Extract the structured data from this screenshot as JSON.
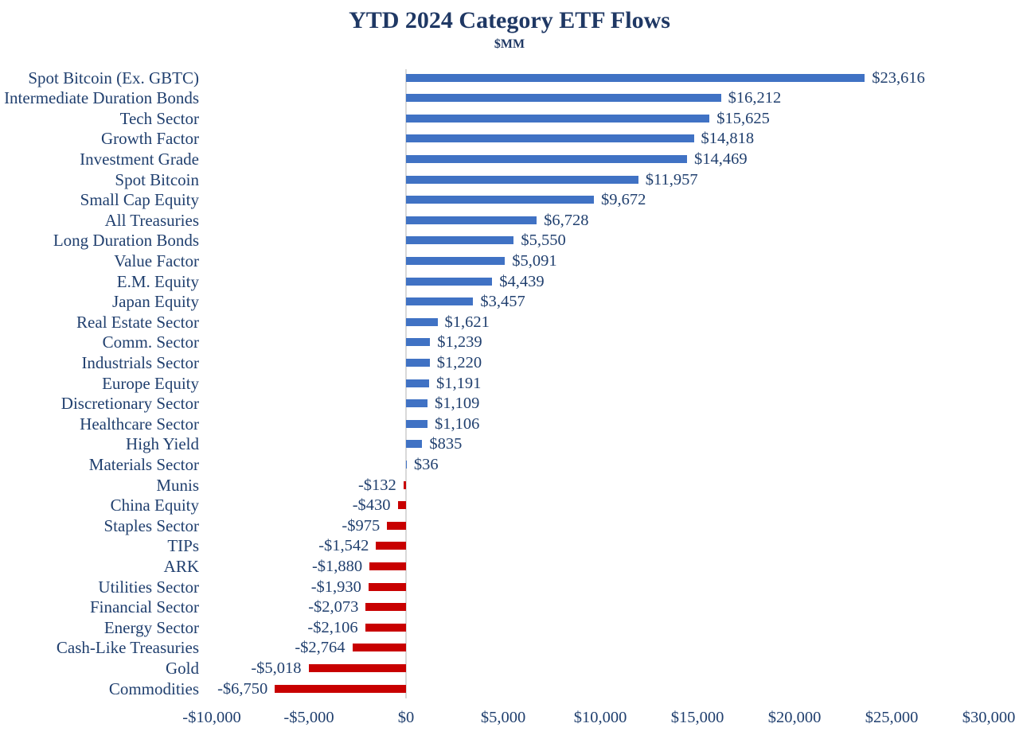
{
  "chart_data": {
    "type": "bar",
    "orientation": "horizontal",
    "title": "YTD 2024 Category ETF Flows",
    "subtitle": "$MM",
    "xlim": [
      -10000,
      30000
    ],
    "grid": false,
    "categories": [
      "Spot Bitcoin (Ex. GBTC)",
      "Intermediate Duration Bonds",
      "Tech Sector",
      "Growth Factor",
      "Investment Grade",
      "Spot Bitcoin",
      "Small Cap Equity",
      "All Treasuries",
      "Long Duration Bonds",
      "Value Factor",
      "E.M. Equity",
      "Japan Equity",
      "Real Estate Sector",
      "Comm. Sector",
      "Industrials Sector",
      "Europe Equity",
      "Discretionary Sector",
      "Healthcare Sector",
      "High Yield",
      "Materials Sector",
      "Munis",
      "China Equity",
      "Staples Sector",
      "TIPs",
      "ARK",
      "Utilities Sector",
      "Financial Sector",
      "Energy Sector",
      "Cash-Like Treasuries",
      "Gold",
      "Commodities"
    ],
    "values": [
      23616,
      16212,
      15625,
      14818,
      14469,
      11957,
      9672,
      6728,
      5550,
      5091,
      4439,
      3457,
      1621,
      1239,
      1220,
      1191,
      1109,
      1106,
      835,
      36,
      -132,
      -430,
      -975,
      -1542,
      -1880,
      -1930,
      -2073,
      -2106,
      -2764,
      -5018,
      -6750
    ],
    "value_labels": [
      "$23,616",
      "$16,212",
      "$15,625",
      "$14,818",
      "$14,469",
      "$11,957",
      "$9,672",
      "$6,728",
      "$5,550",
      "$5,091",
      "$4,439",
      "$3,457",
      "$1,621",
      "$1,239",
      "$1,220",
      "$1,191",
      "$1,109",
      "$1,106",
      "$835",
      "$36",
      "-$132",
      "-$430",
      "-$975",
      "-$1,542",
      "-$1,880",
      "-$1,930",
      "-$2,073",
      "-$2,106",
      "-$2,764",
      "-$5,018",
      "-$6,750"
    ],
    "x_tick_values": [
      -10000,
      -5000,
      0,
      5000,
      10000,
      15000,
      20000,
      25000,
      30000
    ],
    "x_tick_labels": [
      "-$10,000",
      "-$5,000",
      "$0",
      "$5,000",
      "$10,000",
      "$15,000",
      "$20,000",
      "$25,000",
      "$30,000"
    ],
    "colors": {
      "positive_bar": "#4072C4",
      "negative_bar": "#C80000",
      "text": "#21406F",
      "title_text": "#1F3864",
      "axis_line": "#D9D9D9"
    }
  }
}
